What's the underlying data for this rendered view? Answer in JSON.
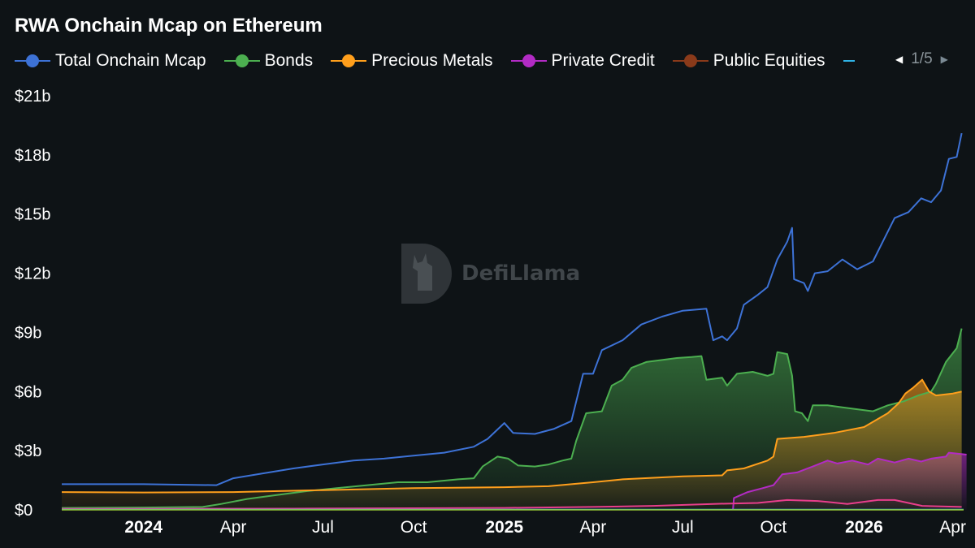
{
  "title": "RWA Onchain Mcap on Ethereum",
  "legend": {
    "items": [
      {
        "label": "Total Onchain Mcap",
        "color": "#3d72d6"
      },
      {
        "label": "Bonds",
        "color": "#4caf50"
      },
      {
        "label": "Precious Metals",
        "color": "#ff9f1c"
      },
      {
        "label": "Private Credit",
        "color": "#b22bc4"
      },
      {
        "label": "Public Equities",
        "color": "#8a3a1a"
      }
    ],
    "partial_color": "#2fb3e6",
    "page": "1/5"
  },
  "watermark": {
    "text": "DefiLlama"
  },
  "chart_data": {
    "type": "line",
    "title": "RWA Onchain Mcap on Ethereum",
    "xlabel": "",
    "ylabel": "",
    "ylim": [
      0,
      21
    ],
    "y_unit": "billions USD",
    "yticks": [
      "$0",
      "$3b",
      "$6b",
      "$9b",
      "$12b",
      "$15b",
      "$18b",
      "$21b"
    ],
    "xticks": [
      {
        "label": "2024",
        "date": "2024-01-01",
        "bold": true
      },
      {
        "label": "Apr",
        "date": "2024-04-01",
        "bold": false
      },
      {
        "label": "Jul",
        "date": "2024-07-01",
        "bold": false
      },
      {
        "label": "Oct",
        "date": "2024-10-01",
        "bold": false
      },
      {
        "label": "2025",
        "date": "2025-01-01",
        "bold": true
      },
      {
        "label": "Apr",
        "date": "2025-04-01",
        "bold": false
      },
      {
        "label": "Jul",
        "date": "2025-07-01",
        "bold": false
      },
      {
        "label": "Oct",
        "date": "2025-10-01",
        "bold": false
      },
      {
        "label": "2026",
        "date": "2026-01-01",
        "bold": true
      },
      {
        "label": "Apr",
        "date": "2026-04-01",
        "bold": false
      }
    ],
    "grid": false,
    "legend_position": "top-left",
    "series": [
      {
        "name": "Private Credit",
        "color": "#b22bc4",
        "fill": true,
        "points": [
          [
            "2025-08-21",
            0.0
          ],
          [
            "2025-08-22",
            0.6
          ],
          [
            "2025-09-05",
            0.9
          ],
          [
            "2025-09-20",
            1.1
          ],
          [
            "2025-10-01",
            1.25
          ],
          [
            "2025-10-10",
            1.8
          ],
          [
            "2025-10-25",
            1.9
          ],
          [
            "2025-11-10",
            2.2
          ],
          [
            "2025-11-25",
            2.5
          ],
          [
            "2025-12-05",
            2.35
          ],
          [
            "2025-12-20",
            2.5
          ],
          [
            "2026-01-05",
            2.3
          ],
          [
            "2026-01-15",
            2.6
          ],
          [
            "2026-02-01",
            2.4
          ],
          [
            "2026-02-15",
            2.6
          ],
          [
            "2026-02-28",
            2.45
          ],
          [
            "2026-03-10",
            2.6
          ],
          [
            "2026-03-25",
            2.7
          ],
          [
            "2026-03-28",
            2.9
          ],
          [
            "2026-04-15",
            2.8
          ]
        ]
      },
      {
        "name": "Bonds",
        "color": "#4caf50",
        "fill": true,
        "points": [
          [
            "2023-10-10",
            0.1
          ],
          [
            "2024-01-01",
            0.12
          ],
          [
            "2024-03-01",
            0.15
          ],
          [
            "2024-03-20",
            0.3
          ],
          [
            "2024-04-15",
            0.55
          ],
          [
            "2024-05-15",
            0.75
          ],
          [
            "2024-06-15",
            0.95
          ],
          [
            "2024-07-15",
            1.1
          ],
          [
            "2024-08-15",
            1.25
          ],
          [
            "2024-09-15",
            1.4
          ],
          [
            "2024-10-15",
            1.4
          ],
          [
            "2024-11-15",
            1.55
          ],
          [
            "2024-12-01",
            1.6
          ],
          [
            "2024-12-10",
            2.2
          ],
          [
            "2024-12-25",
            2.7
          ],
          [
            "2025-01-05",
            2.6
          ],
          [
            "2025-01-15",
            2.25
          ],
          [
            "2025-02-01",
            2.2
          ],
          [
            "2025-02-15",
            2.3
          ],
          [
            "2025-03-01",
            2.5
          ],
          [
            "2025-03-10",
            2.6
          ],
          [
            "2025-03-15",
            3.5
          ],
          [
            "2025-03-25",
            4.9
          ],
          [
            "2025-04-10",
            5.0
          ],
          [
            "2025-04-20",
            6.3
          ],
          [
            "2025-05-01",
            6.6
          ],
          [
            "2025-05-10",
            7.2
          ],
          [
            "2025-05-25",
            7.5
          ],
          [
            "2025-06-10",
            7.6
          ],
          [
            "2025-06-25",
            7.7
          ],
          [
            "2025-07-10",
            7.75
          ],
          [
            "2025-07-20",
            7.8
          ],
          [
            "2025-07-25",
            6.6
          ],
          [
            "2025-08-10",
            6.7
          ],
          [
            "2025-08-15",
            6.3
          ],
          [
            "2025-08-25",
            6.9
          ],
          [
            "2025-09-10",
            7.0
          ],
          [
            "2025-09-25",
            6.8
          ],
          [
            "2025-10-01",
            6.9
          ],
          [
            "2025-10-05",
            8.0
          ],
          [
            "2025-10-15",
            7.9
          ],
          [
            "2025-10-20",
            6.8
          ],
          [
            "2025-10-23",
            5.0
          ],
          [
            "2025-10-30",
            4.9
          ],
          [
            "2025-11-05",
            4.5
          ],
          [
            "2025-11-10",
            5.3
          ],
          [
            "2025-11-25",
            5.3
          ],
          [
            "2025-12-10",
            5.2
          ],
          [
            "2025-12-25",
            5.1
          ],
          [
            "2026-01-10",
            5.0
          ],
          [
            "2026-01-25",
            5.3
          ],
          [
            "2026-02-10",
            5.5
          ],
          [
            "2026-02-25",
            5.8
          ],
          [
            "2026-03-10",
            6.0
          ],
          [
            "2026-03-15",
            6.4
          ],
          [
            "2026-03-25",
            7.5
          ],
          [
            "2026-04-05",
            8.2
          ],
          [
            "2026-04-10",
            9.2
          ]
        ]
      },
      {
        "name": "Precious Metals",
        "color": "#ff9f1c",
        "fill": true,
        "points": [
          [
            "2023-10-10",
            0.9
          ],
          [
            "2024-01-01",
            0.88
          ],
          [
            "2024-04-01",
            0.9
          ],
          [
            "2024-07-01",
            1.0
          ],
          [
            "2024-10-01",
            1.1
          ],
          [
            "2025-01-01",
            1.15
          ],
          [
            "2025-02-15",
            1.2
          ],
          [
            "2025-04-01",
            1.4
          ],
          [
            "2025-05-01",
            1.55
          ],
          [
            "2025-07-01",
            1.7
          ],
          [
            "2025-08-10",
            1.75
          ],
          [
            "2025-08-15",
            2.0
          ],
          [
            "2025-09-01",
            2.1
          ],
          [
            "2025-09-25",
            2.5
          ],
          [
            "2025-10-01",
            2.7
          ],
          [
            "2025-10-05",
            3.6
          ],
          [
            "2025-11-01",
            3.7
          ],
          [
            "2025-12-01",
            3.9
          ],
          [
            "2026-01-01",
            4.2
          ],
          [
            "2026-01-25",
            4.9
          ],
          [
            "2026-02-05",
            5.4
          ],
          [
            "2026-02-12",
            5.9
          ],
          [
            "2026-02-20",
            6.2
          ],
          [
            "2026-03-01",
            6.6
          ],
          [
            "2026-03-08",
            6.0
          ],
          [
            "2026-03-15",
            5.8
          ],
          [
            "2026-04-01",
            5.9
          ],
          [
            "2026-04-10",
            6.0
          ]
        ]
      },
      {
        "name": "Pink series",
        "color": "#e83e8c",
        "fill": false,
        "points": [
          [
            "2023-10-10",
            0.05
          ],
          [
            "2024-06-01",
            0.06
          ],
          [
            "2025-01-01",
            0.1
          ],
          [
            "2025-04-01",
            0.15
          ],
          [
            "2025-06-01",
            0.2
          ],
          [
            "2025-08-01",
            0.3
          ],
          [
            "2025-09-15",
            0.35
          ],
          [
            "2025-10-15",
            0.5
          ],
          [
            "2025-11-15",
            0.45
          ],
          [
            "2025-12-15",
            0.3
          ],
          [
            "2026-01-15",
            0.5
          ],
          [
            "2026-02-01",
            0.5
          ],
          [
            "2026-02-15",
            0.35
          ],
          [
            "2026-03-01",
            0.2
          ],
          [
            "2026-04-10",
            0.15
          ]
        ]
      },
      {
        "name": "Total Onchain Mcap",
        "color": "#3d72d6",
        "fill": false,
        "points": [
          [
            "2023-10-10",
            1.3
          ],
          [
            "2024-01-01",
            1.3
          ],
          [
            "2024-03-15",
            1.25
          ],
          [
            "2024-04-01",
            1.6
          ],
          [
            "2024-05-01",
            1.85
          ],
          [
            "2024-06-01",
            2.1
          ],
          [
            "2024-07-01",
            2.3
          ],
          [
            "2024-08-01",
            2.5
          ],
          [
            "2024-09-01",
            2.6
          ],
          [
            "2024-10-01",
            2.75
          ],
          [
            "2024-11-01",
            2.9
          ],
          [
            "2024-12-01",
            3.2
          ],
          [
            "2024-12-15",
            3.6
          ],
          [
            "2025-01-01",
            4.4
          ],
          [
            "2025-01-10",
            3.9
          ],
          [
            "2025-02-01",
            3.85
          ],
          [
            "2025-02-20",
            4.1
          ],
          [
            "2025-03-10",
            4.5
          ],
          [
            "2025-03-22",
            6.9
          ],
          [
            "2025-04-01",
            6.9
          ],
          [
            "2025-04-10",
            8.1
          ],
          [
            "2025-05-01",
            8.6
          ],
          [
            "2025-05-20",
            9.4
          ],
          [
            "2025-06-10",
            9.8
          ],
          [
            "2025-07-01",
            10.1
          ],
          [
            "2025-07-25",
            10.2
          ],
          [
            "2025-08-01",
            8.6
          ],
          [
            "2025-08-10",
            8.8
          ],
          [
            "2025-08-15",
            8.6
          ],
          [
            "2025-08-25",
            9.2
          ],
          [
            "2025-09-01",
            10.4
          ],
          [
            "2025-09-15",
            10.9
          ],
          [
            "2025-09-25",
            11.3
          ],
          [
            "2025-10-05",
            12.7
          ],
          [
            "2025-10-15",
            13.6
          ],
          [
            "2025-10-20",
            14.3
          ],
          [
            "2025-10-22",
            11.7
          ],
          [
            "2025-11-01",
            11.5
          ],
          [
            "2025-11-05",
            11.1
          ],
          [
            "2025-11-12",
            12.0
          ],
          [
            "2025-11-25",
            12.1
          ],
          [
            "2025-12-10",
            12.7
          ],
          [
            "2025-12-25",
            12.2
          ],
          [
            "2026-01-10",
            12.6
          ],
          [
            "2026-01-20",
            13.6
          ],
          [
            "2026-02-01",
            14.8
          ],
          [
            "2026-02-15",
            15.1
          ],
          [
            "2026-02-28",
            15.8
          ],
          [
            "2026-03-10",
            15.6
          ],
          [
            "2026-03-20",
            16.2
          ],
          [
            "2026-03-28",
            17.8
          ],
          [
            "2026-04-05",
            17.9
          ],
          [
            "2026-04-10",
            19.1
          ]
        ]
      }
    ]
  }
}
